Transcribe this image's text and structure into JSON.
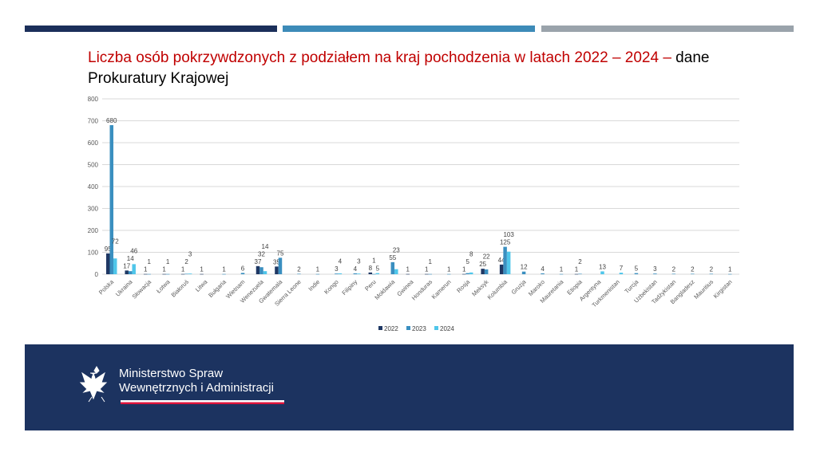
{
  "header": {
    "title_red": "Liczba osób pokrzywdzonych z podziałem na kraj pochodzenia w latach 2022 – 2024 –",
    "title_black": " dane Prokuratury Krajowej"
  },
  "colors": {
    "s2022": "#1f3864",
    "s2023": "#3a8fc0",
    "s2024": "#4fc6ea",
    "top1": "#1b2f5a",
    "top2": "#3d8bb8",
    "top3": "#9aa3ab",
    "footer": "#1c3360"
  },
  "chart_data": {
    "type": "bar",
    "title": "",
    "xlabel": "",
    "ylabel": "",
    "ylim": [
      0,
      800
    ],
    "yticks": [
      0,
      100,
      200,
      300,
      400,
      500,
      600,
      700,
      800
    ],
    "grid": true,
    "legend": "bottom",
    "categories": [
      "Polska",
      "Ukraina",
      "Słowacja",
      "Łotwa",
      "Białoruś",
      "Litwa",
      "Bułgaria",
      "Wietnam",
      "Wenezuela",
      "Gwatemala",
      "Sierra Leone",
      "Indie",
      "Kongo",
      "Filipiny",
      "Peru",
      "Mołdawia",
      "Gwinea",
      "Honduras",
      "Kamerun",
      "Rosja",
      "Meksyk",
      "Kolumbia",
      "Gruzja",
      "Maroko",
      "Mauretania",
      "Etiopia",
      "Argentyna",
      "Turkmenistan",
      "Turcja",
      "Uzbekistan",
      "Tadżykistan",
      "Bangladesz",
      "Mauritius",
      "Kirgistan"
    ],
    "series": [
      {
        "name": "2022",
        "values": [
          95,
          17,
          1,
          1,
          1,
          1,
          null,
          null,
          37,
          35,
          null,
          null,
          null,
          null,
          8,
          null,
          1,
          1,
          null,
          1,
          25,
          44,
          null,
          null,
          null,
          1,
          null,
          null,
          null,
          null,
          null,
          null,
          null,
          null
        ]
      },
      {
        "name": "2023",
        "values": [
          680,
          14,
          1,
          1,
          2,
          null,
          1,
          6,
          32,
          75,
          2,
          1,
          3,
          4,
          1,
          55,
          null,
          1,
          1,
          5,
          22,
          125,
          12,
          4,
          1,
          2,
          null,
          null,
          5,
          3,
          2,
          2,
          2,
          1
        ]
      },
      {
        "name": "2024",
        "values": [
          72,
          46,
          null,
          null,
          3,
          null,
          null,
          null,
          14,
          null,
          null,
          null,
          4,
          3,
          5,
          23,
          null,
          null,
          null,
          8,
          null,
          103,
          null,
          null,
          null,
          null,
          13,
          7,
          null,
          null,
          null,
          null,
          null,
          null
        ]
      }
    ]
  },
  "footer": {
    "line1": "Ministerstwo Spraw",
    "line2": "Wewnętrznych i Administracji"
  }
}
